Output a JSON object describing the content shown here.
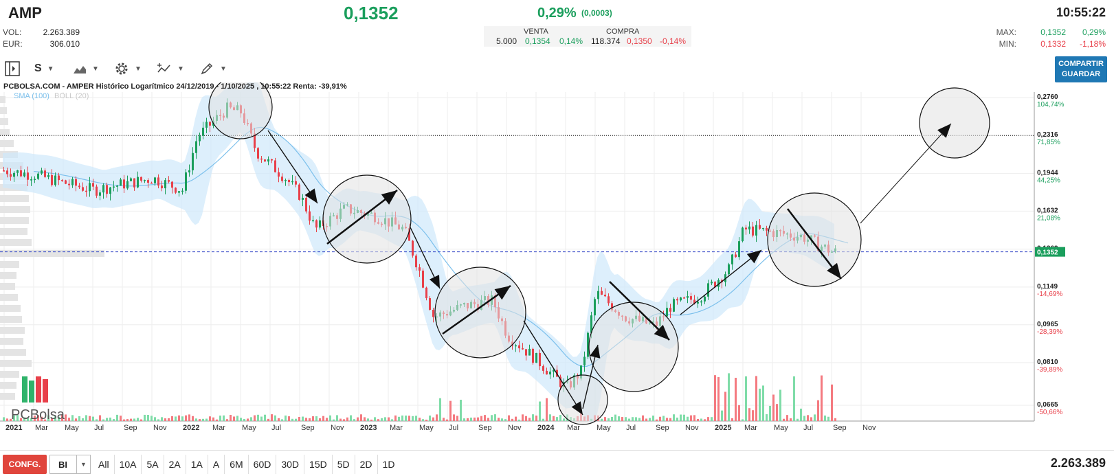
{
  "header": {
    "ticker": "AMP",
    "price": "0,1352",
    "change_pct": "0,29%",
    "change_abs": "(0,0003)",
    "time": "10:55:22",
    "vol_label": "VOL:",
    "vol_value": "2.263.389",
    "eur_label": "EUR:",
    "eur_value": "306.010"
  },
  "quote": {
    "venta_label": "VENTA",
    "compra_label": "COMPRA",
    "venta_qty": "5.000",
    "venta_price": "0,1354",
    "venta_pct": "0,14%",
    "compra_qty": "118.374",
    "compra_price": "0,1350",
    "compra_pct": "-0,14%"
  },
  "maxmin": {
    "max_label": "MAX:",
    "max_value": "0,1352",
    "max_pct": "0,29%",
    "min_label": "MIN:",
    "min_value": "0,1332",
    "min_pct": "-1,18%"
  },
  "toolbar": {
    "period_label": "S",
    "share_line1": "COMPARTIR",
    "share_line2": "GUARDAR"
  },
  "chart_title": "PCBOLSA.COM - AMPER Histórico Logarítmico 24/12/2019 - 1/10/2025 , 10:55:22 Renta: -39,91%",
  "indicators": {
    "sma": "SMA (100)",
    "boll": "BOLL (20)"
  },
  "watermark": "PCBolsa",
  "footer": {
    "conf_label": "CONFG.",
    "bi_label": "BI",
    "ranges": [
      "All",
      "10A",
      "5A",
      "2A",
      "1A",
      "A",
      "6M",
      "60D",
      "30D",
      "15D",
      "5D",
      "2D",
      "1D"
    ],
    "volume": "2.263.389"
  },
  "colors": {
    "up": "#1a9e5c",
    "down": "#e8404a",
    "band": "#cfe8fb",
    "sma": "#7cc0ec",
    "accent": "#1f78b4"
  },
  "chart_data": {
    "type": "candlestick",
    "scale": "log",
    "title": "PCBOLSA.COM - AMPER Histórico Logarítmico 24/12/2019 - 1/10/2025 , 10:55:22 Renta: -39,91%",
    "x_tick_labels": [
      "2021",
      "Mar",
      "May",
      "Jul",
      "Sep",
      "Nov",
      "2022",
      "Mar",
      "May",
      "Jul",
      "Sep",
      "Nov",
      "2023",
      "Mar",
      "May",
      "Jul",
      "Sep",
      "Nov",
      "2024",
      "Mar",
      "May",
      "Jul",
      "Sep",
      "Nov",
      "2025",
      "Mar",
      "May",
      "Jul",
      "Sep",
      "Nov"
    ],
    "y_ticks": [
      {
        "price": "0,2760",
        "pct": "104,74%",
        "pct_color": "g"
      },
      {
        "price": "0,2316",
        "pct": "71,85%",
        "pct_color": "g"
      },
      {
        "price": "0,1944",
        "pct": "44,25%",
        "pct_color": "g"
      },
      {
        "price": "0,1632",
        "pct": "21,08%",
        "pct_color": "g"
      },
      {
        "price": "0,1369",
        "pct": "",
        "pct_color": "g"
      },
      {
        "price": "0,1149",
        "pct": "-14,69%",
        "pct_color": "r"
      },
      {
        "price": "0,0965",
        "pct": "-28,39%",
        "pct_color": "r"
      },
      {
        "price": "0,0810",
        "pct": "-39,89%",
        "pct_color": "r"
      },
      {
        "price": "0,0665",
        "pct": "-50,66%",
        "pct_color": "r"
      }
    ],
    "last_price": "0,1352",
    "reference_level": 0.2316,
    "approx_close_path": [
      [
        "2021-01",
        0.197
      ],
      [
        "2021-03",
        0.193
      ],
      [
        "2021-05",
        0.186
      ],
      [
        "2021-07",
        0.18
      ],
      [
        "2021-09",
        0.185
      ],
      [
        "2021-11",
        0.19
      ],
      [
        "2022-01",
        0.18
      ],
      [
        "2022-02",
        0.23
      ],
      [
        "2022-04",
        0.262
      ],
      [
        "2022-05",
        0.258
      ],
      [
        "2022-06",
        0.215
      ],
      [
        "2022-08",
        0.19
      ],
      [
        "2022-09",
        0.175
      ],
      [
        "2022-10",
        0.15
      ],
      [
        "2022-12",
        0.165
      ],
      [
        "2023-02",
        0.16
      ],
      [
        "2023-04",
        0.15
      ],
      [
        "2023-05",
        0.125
      ],
      [
        "2023-06",
        0.1
      ],
      [
        "2023-08",
        0.105
      ],
      [
        "2023-10",
        0.108
      ],
      [
        "2023-11",
        0.092
      ],
      [
        "2024-01",
        0.082
      ],
      [
        "2024-03",
        0.072
      ],
      [
        "2024-04",
        0.078
      ],
      [
        "2024-05",
        0.112
      ],
      [
        "2024-07",
        0.1
      ],
      [
        "2024-09",
        0.096
      ],
      [
        "2024-10",
        0.105
      ],
      [
        "2024-12",
        0.11
      ],
      [
        "2025-02",
        0.125
      ],
      [
        "2025-03",
        0.15
      ],
      [
        "2025-05",
        0.148
      ],
      [
        "2025-07",
        0.145
      ],
      [
        "2025-08",
        0.14
      ],
      [
        "2025-09",
        0.1352
      ]
    ],
    "grid": true
  }
}
